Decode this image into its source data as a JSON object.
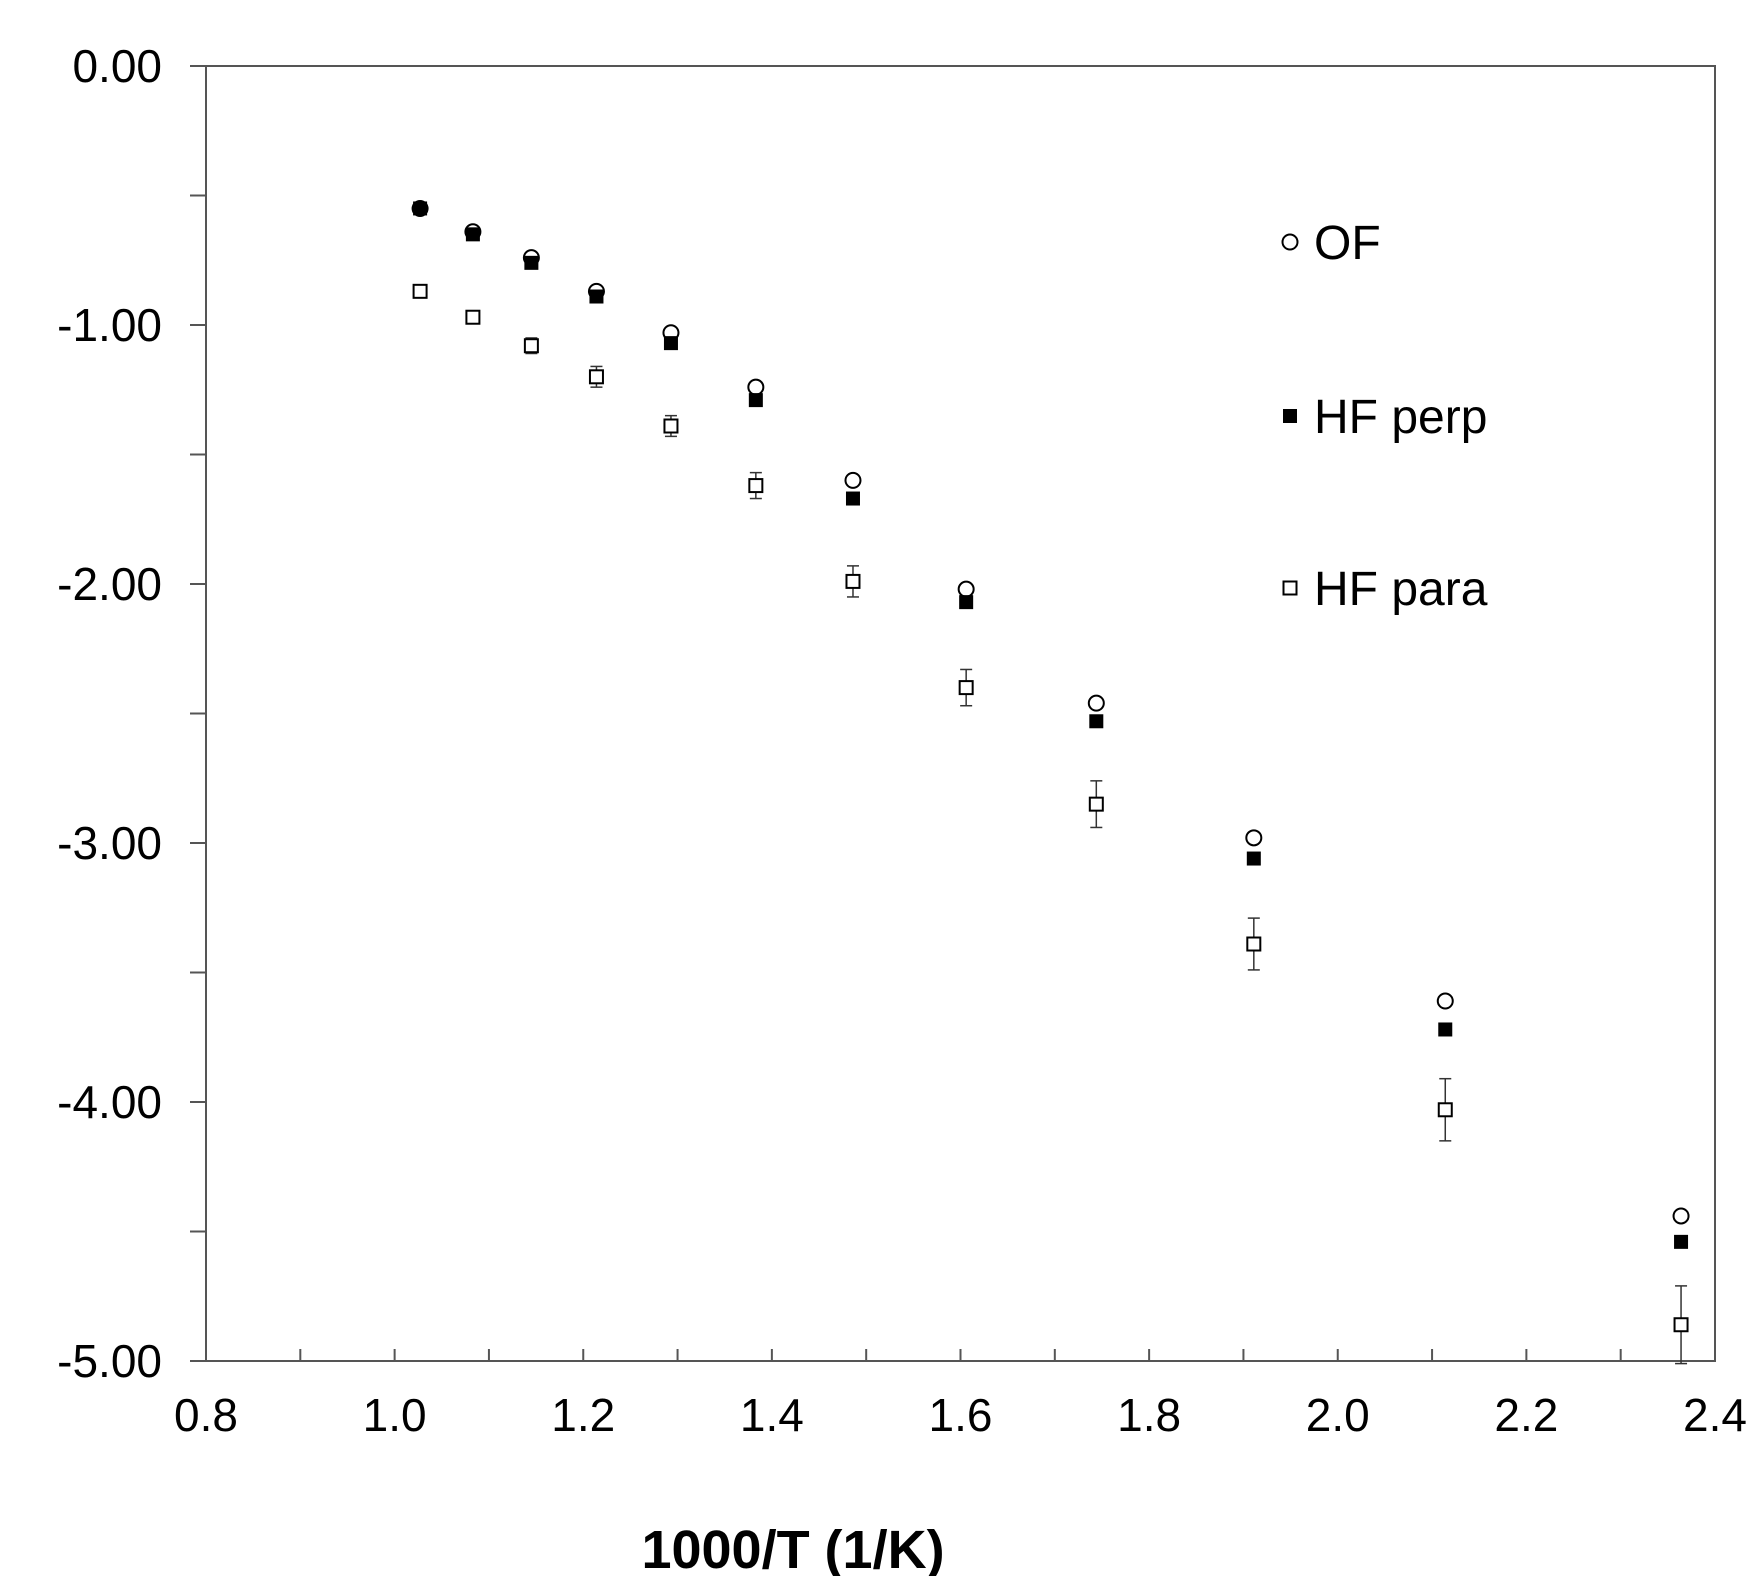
{
  "chart_data": {
    "type": "scatter",
    "title": "",
    "xlabel": "1000/T  (1/K)",
    "ylabel": "",
    "xlim": [
      0.8,
      2.4
    ],
    "ylim": [
      -5.0,
      0.0
    ],
    "x_ticks": [
      "0.8",
      "1.0",
      "1.2",
      "1.4",
      "1.6",
      "1.8",
      "2.0",
      "2.2",
      "2.4"
    ],
    "y_ticks": [
      "0.00",
      "-1.00",
      "-2.00",
      "-3.00",
      "-4.00",
      "-5.00"
    ],
    "grid": false,
    "legend_position": "top-right",
    "x": [
      1.027,
      1.083,
      1.145,
      1.214,
      1.293,
      1.383,
      1.486,
      1.606,
      1.744,
      1.911,
      2.114,
      2.364
    ],
    "series": [
      {
        "name": "OF",
        "marker": "open-circle",
        "values": [
          -0.55,
          -0.64,
          -0.74,
          -0.87,
          -1.03,
          -1.24,
          -1.6,
          -2.02,
          -2.46,
          -2.98,
          -3.61,
          -4.44
        ]
      },
      {
        "name": "HF perp",
        "marker": "filled-square",
        "values": [
          -0.55,
          -0.65,
          -0.76,
          -0.89,
          -1.07,
          -1.29,
          -1.67,
          -2.07,
          -2.53,
          -3.06,
          -3.72,
          -4.54
        ]
      },
      {
        "name": "HF para",
        "marker": "open-square",
        "values": [
          -0.87,
          -0.97,
          -1.08,
          -1.2,
          -1.39,
          -1.62,
          -1.99,
          -2.4,
          -2.85,
          -3.39,
          -4.03,
          -4.86
        ],
        "error": [
          0.02,
          0.02,
          0.03,
          0.04,
          0.04,
          0.05,
          0.06,
          0.07,
          0.09,
          0.1,
          0.12,
          0.15
        ]
      }
    ]
  }
}
